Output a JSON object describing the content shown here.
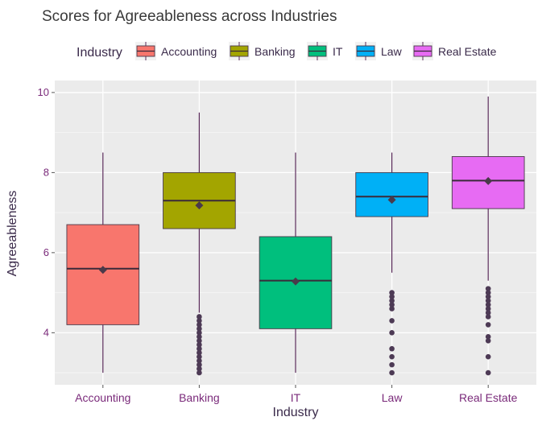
{
  "chart_data": {
    "type": "box",
    "title": "Scores for Agreeableness across Industries",
    "xlabel": "Industry",
    "ylabel": "Agreeableness",
    "legend_title": "Industry",
    "legend_position": "top",
    "ylim": [
      2.7,
      10.3
    ],
    "y_ticks": [
      4,
      6,
      8,
      10
    ],
    "grid": true,
    "categories": [
      "Accounting",
      "Banking",
      "IT",
      "Law",
      "Real Estate"
    ],
    "series": [
      {
        "name": "Accounting",
        "color": "#F8766D",
        "whisker_low": 3.0,
        "q1": 4.2,
        "median": 5.6,
        "q3": 6.7,
        "whisker_high": 8.5,
        "mean": 5.57,
        "outliers": []
      },
      {
        "name": "Banking",
        "color": "#A3A500",
        "whisker_low": 4.5,
        "q1": 6.6,
        "median": 7.3,
        "q3": 8.0,
        "whisker_high": 9.5,
        "mean": 7.18,
        "outliers": [
          3.0,
          3.1,
          3.2,
          3.3,
          3.4,
          3.5,
          3.6,
          3.7,
          3.8,
          3.9,
          4.0,
          4.1,
          4.2,
          4.3,
          4.4
        ]
      },
      {
        "name": "IT",
        "color": "#00BF7D",
        "whisker_low": 3.0,
        "q1": 4.1,
        "median": 5.3,
        "q3": 6.4,
        "whisker_high": 8.5,
        "mean": 5.28,
        "outliers": []
      },
      {
        "name": "Law",
        "color": "#00B0F6",
        "whisker_low": 5.5,
        "q1": 6.9,
        "median": 7.4,
        "q3": 8.0,
        "whisker_high": 8.5,
        "mean": 7.32,
        "outliers": [
          3.0,
          3.2,
          3.4,
          3.6,
          4.0,
          4.3,
          4.6,
          4.7,
          4.8,
          4.9,
          5.0
        ]
      },
      {
        "name": "Real Estate",
        "color": "#E76BF3",
        "whisker_low": 5.3,
        "q1": 7.1,
        "median": 7.8,
        "q3": 8.4,
        "whisker_high": 9.9,
        "mean": 7.79,
        "outliers": [
          3.0,
          3.4,
          3.8,
          3.9,
          4.2,
          4.4,
          4.5,
          4.6,
          4.7,
          4.8,
          4.9,
          5.0,
          5.1
        ]
      }
    ]
  }
}
